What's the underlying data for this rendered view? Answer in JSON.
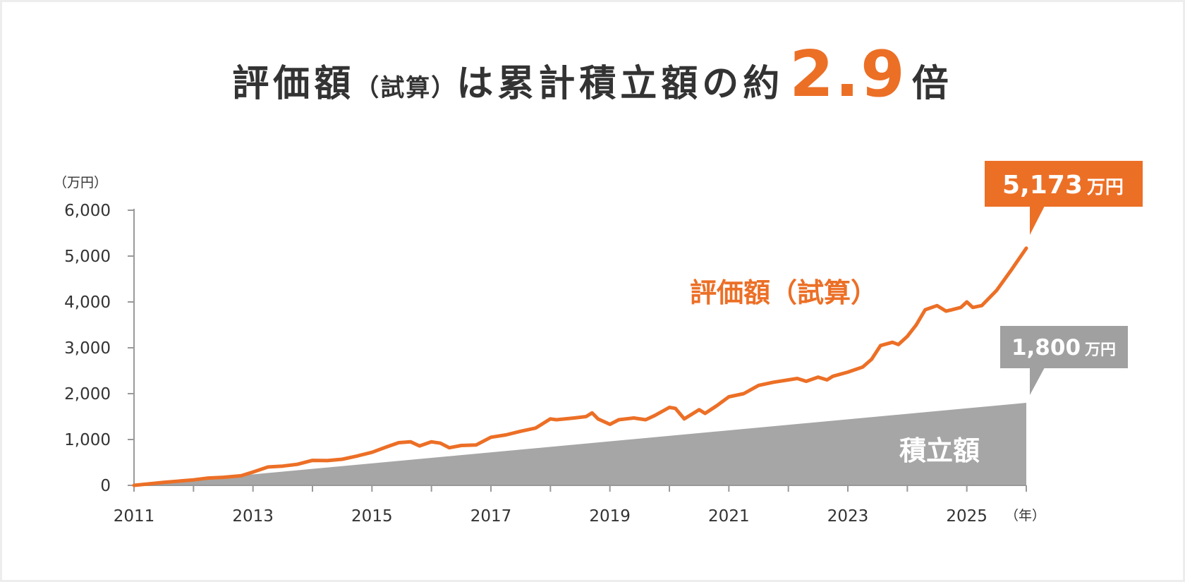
{
  "title": {
    "part1": "評価額",
    "part2": "（試算）",
    "part3": "は累計積立額の約",
    "multiplier": "2.9",
    "part4": "倍"
  },
  "colors": {
    "evaluation": "#ec6f26",
    "contribution": "#a6a6a6",
    "axis": "#999999",
    "text": "#333333",
    "contribution_callout": "#a0a0a0"
  },
  "labels": {
    "evaluation_series": "評価額（試算）",
    "contribution_series": "積立額"
  },
  "callouts": {
    "evaluation_value": "5,173",
    "evaluation_unit": "万円",
    "contribution_value": "1,800",
    "contribution_unit": "万円"
  },
  "chart_data": {
    "type": "line",
    "y_unit_label": "（万円）",
    "x_unit_label": "（年）",
    "ylim": [
      0,
      6000
    ],
    "xlim": [
      2011,
      2026
    ],
    "y_ticks": [
      0,
      1000,
      2000,
      3000,
      4000,
      5000,
      6000
    ],
    "y_tick_labels": [
      "0",
      "1,000",
      "2,000",
      "3,000",
      "4,000",
      "5,000",
      "6,000"
    ],
    "x_ticks": [
      2011,
      2013,
      2015,
      2017,
      2019,
      2021,
      2023,
      2025
    ],
    "x_tick_labels": [
      "2011",
      "2013",
      "2015",
      "2017",
      "2019",
      "2021",
      "2023",
      "2025"
    ],
    "grid": false,
    "series": [
      {
        "name": "評価額（試算）",
        "type": "line",
        "x": [
          2011.0,
          2011.5,
          2012.0,
          2012.25,
          2012.5,
          2012.8,
          2013.0,
          2013.25,
          2013.5,
          2013.75,
          2014.0,
          2014.25,
          2014.5,
          2014.75,
          2015.0,
          2015.25,
          2015.45,
          2015.65,
          2015.8,
          2016.0,
          2016.15,
          2016.3,
          2016.5,
          2016.75,
          2017.0,
          2017.25,
          2017.5,
          2017.75,
          2018.0,
          2018.1,
          2018.4,
          2018.6,
          2018.7,
          2018.8,
          2019.0,
          2019.15,
          2019.4,
          2019.6,
          2019.75,
          2020.0,
          2020.1,
          2020.25,
          2020.5,
          2020.6,
          2020.8,
          2021.0,
          2021.25,
          2021.5,
          2021.75,
          2022.0,
          2022.15,
          2022.3,
          2022.5,
          2022.65,
          2022.75,
          2023.0,
          2023.25,
          2023.4,
          2023.55,
          2023.75,
          2023.85,
          2024.0,
          2024.15,
          2024.3,
          2024.5,
          2024.65,
          2024.75,
          2024.9,
          2025.0,
          2025.1,
          2025.25,
          2025.5,
          2025.75,
          2026.0
        ],
        "y": [
          0,
          65,
          120,
          160,
          175,
          210,
          290,
          400,
          420,
          460,
          545,
          540,
          570,
          640,
          720,
          840,
          930,
          950,
          860,
          950,
          920,
          820,
          870,
          880,
          1050,
          1100,
          1180,
          1250,
          1450,
          1430,
          1470,
          1500,
          1580,
          1450,
          1330,
          1430,
          1470,
          1430,
          1520,
          1700,
          1680,
          1450,
          1650,
          1570,
          1740,
          1930,
          2000,
          2180,
          2250,
          2300,
          2330,
          2270,
          2360,
          2300,
          2380,
          2470,
          2580,
          2750,
          3050,
          3120,
          3070,
          3250,
          3500,
          3830,
          3920,
          3800,
          3830,
          3880,
          4000,
          3880,
          3920,
          4250,
          4700,
          5173
        ]
      },
      {
        "name": "積立額",
        "type": "area",
        "x": [
          2011,
          2026
        ],
        "y": [
          0,
          1800
        ]
      }
    ]
  }
}
